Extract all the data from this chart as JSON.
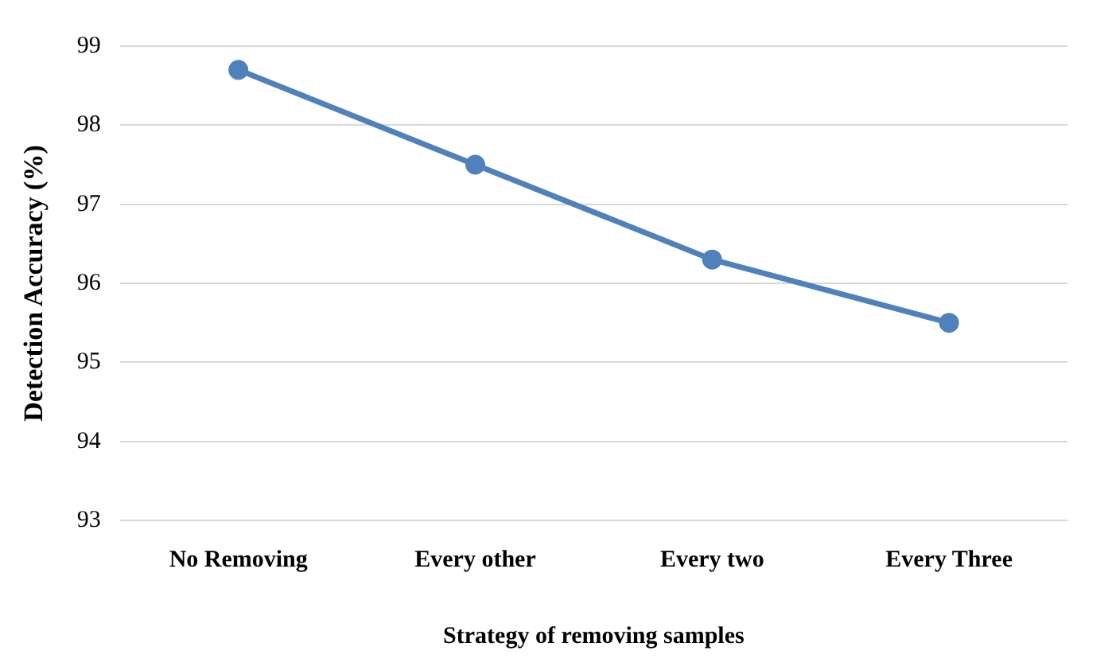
{
  "chart_data": {
    "type": "line",
    "xlabel": "Strategy of removing samples",
    "ylabel": "Detection Accuracy (%)",
    "categories": [
      "No Removing",
      "Every other",
      "Every two",
      "Every Three"
    ],
    "series": [
      {
        "color": "#4f81bd",
        "values": [
          98.7,
          97.5,
          96.3,
          95.5
        ]
      }
    ],
    "ylim": [
      93,
      99
    ],
    "yticks": [
      93,
      94,
      95,
      96,
      97,
      98,
      99
    ],
    "grid": "y",
    "marker": "circle",
    "line_style": "solid",
    "legend": false
  }
}
